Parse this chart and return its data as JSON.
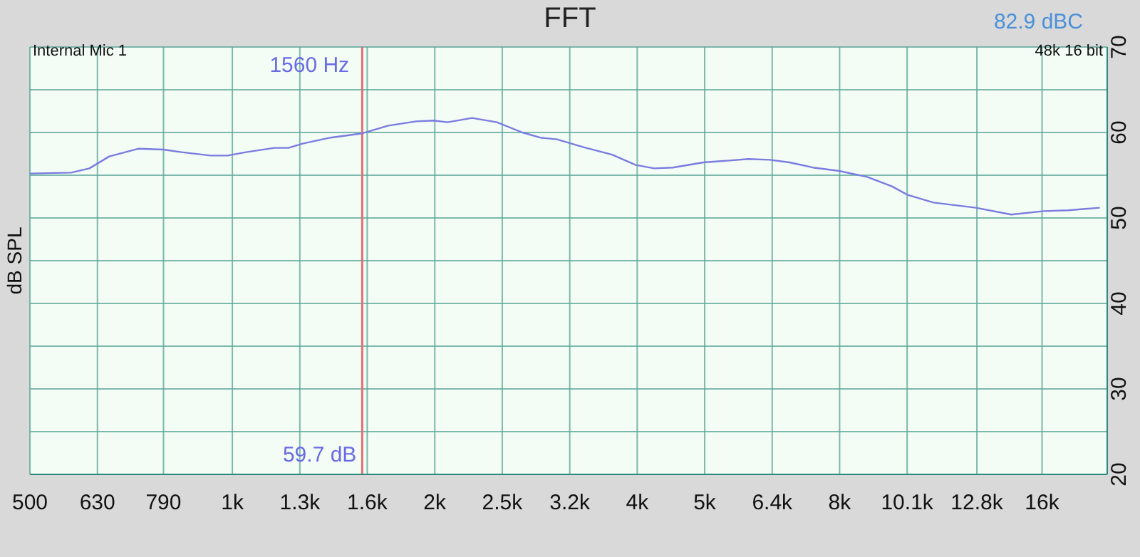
{
  "chart_data": {
    "type": "line",
    "title": "FFT",
    "ylabel": "dB SPL",
    "annotations": [
      "Internal Mic 1",
      "48k 16 bit",
      "82.9 dBC",
      "59.7 dB"
    ],
    "x": [
      500,
      576,
      613,
      656,
      724,
      790,
      840,
      928,
      984,
      1048,
      1155,
      1212,
      1272,
      1400,
      1561,
      1706,
      1877,
      1993,
      2089,
      2273,
      2474,
      2700,
      2870,
      3040,
      3320,
      3670,
      3980,
      4240,
      4520,
      5020,
      5440,
      5850,
      6300,
      6740,
      7300,
      7990,
      8790,
      9570,
      10100,
      11030,
      12750,
      14400,
      16100,
      17500,
      19500
    ],
    "series": [
      {
        "color": "#7b7be0",
        "values": [
          55.2,
          55.3,
          55.8,
          57.2,
          58.1,
          58.0,
          57.7,
          57.3,
          57.3,
          57.7,
          58.2,
          58.2,
          58.7,
          59.4,
          59.9,
          60.8,
          61.3,
          61.4,
          61.2,
          61.7,
          61.2,
          60.0,
          59.4,
          59.2,
          58.3,
          57.4,
          56.2,
          55.8,
          55.9,
          56.5,
          56.7,
          56.9,
          56.8,
          56.5,
          55.9,
          55.5,
          54.8,
          53.7,
          52.7,
          51.8,
          51.2,
          50.4,
          50.8,
          50.9,
          51.2
        ]
      }
    ],
    "log": "x",
    "xlim": [
      500,
      20000
    ],
    "xticks": [
      500,
      630,
      790,
      {
        "value": 1000,
        "label": "1k"
      },
      {
        "value": 1260,
        "label": "1.3k"
      },
      {
        "value": 1587,
        "label": "1.6k"
      },
      {
        "value": 2000,
        "label": "2k"
      },
      {
        "value": 2520,
        "label": "2.5k"
      },
      {
        "value": 3175,
        "label": "3.2k"
      },
      {
        "value": 4000,
        "label": "4k"
      },
      {
        "value": 5040,
        "label": "5k"
      },
      {
        "value": 6350,
        "label": "6.4k"
      },
      {
        "value": 8000,
        "label": "8k"
      },
      {
        "value": 10080,
        "label": "10.1k"
      },
      {
        "value": 12800,
        "label": "12.8k"
      },
      {
        "value": 16000,
        "label": "16k"
      }
    ],
    "ylim": [
      20,
      70
    ],
    "yticks": [
      20,
      {
        "value": 25,
        "label": null
      },
      30,
      {
        "value": 35,
        "label": null
      },
      40,
      {
        "value": 45,
        "label": null
      },
      50,
      {
        "value": 55,
        "label": null
      },
      60,
      {
        "value": 65,
        "label": null
      },
      70
    ],
    "ref_lines": [
      {
        "axis": "x",
        "value": 1560,
        "label": "1560 Hz",
        "color": "#e07070"
      }
    ],
    "grid": true,
    "legend": false,
    "marker": "none",
    "line_style": "solid"
  }
}
